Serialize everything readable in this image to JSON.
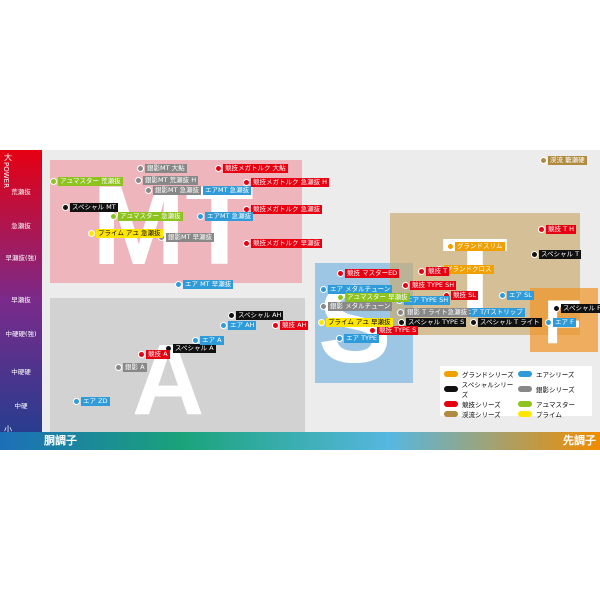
{
  "power_axis": {
    "high": "大",
    "label": "POWER",
    "low": "小",
    "levels": [
      "荒瀬抜",
      "急瀬抜",
      "早瀬抜(強)",
      "早瀬抜",
      "中硬硬(強)",
      "中硬硬",
      "中硬"
    ]
  },
  "tone_axis": {
    "left": "胴調子",
    "right": "先調子"
  },
  "groups": [
    "MT",
    "A",
    "S",
    "T",
    "F"
  ],
  "series": [
    {
      "name": "グランドシリーズ",
      "color": "#f0a000",
      "items": [
        "グランドスリム",
        "グランドクロス"
      ]
    },
    {
      "name": "スペシャルシリーズ",
      "color": "#111111",
      "items": [
        "スペシャル MT",
        "スペシャル T",
        "スペシャル F",
        "スペシャル TYPE S",
        "スペシャル T ライト",
        "スペシャル AH",
        "スペシャル A"
      ]
    },
    {
      "name": "競技シリーズ",
      "color": "#e60012",
      "items": [
        "競技メガトルク 大鮎",
        "競技メガトルク 急瀬抜 H",
        "競技メガトルク 急瀬抜",
        "競技メガトルク 早瀬抜",
        "競技 T H",
        "競技 マスターED",
        "競技 T",
        "競技 TYPE SH",
        "競技 SL",
        "競技 TYPE S",
        "競技 AH",
        "競技 A"
      ]
    },
    {
      "name": "渓流シリーズ",
      "color": "#b08a3e",
      "items": [
        "渓流 籠瀬硬"
      ]
    },
    {
      "name": "エアシリーズ",
      "color": "#2f9bd8",
      "items": [
        "エアMT 急瀬抜",
        "エアMT 急瀬抜",
        "エア MT 早瀬抜",
        "エア メタルチューン",
        "エア TYPE SH",
        "エア SL",
        "エア T/Tストリップ",
        "エア F",
        "エア TYPE",
        "エア AH",
        "エア A",
        "エア ZD"
      ]
    },
    {
      "name": "銀影シリーズ",
      "color": "#888888",
      "items": [
        "銀影MT 大鮎",
        "銀影MT 荒瀬抜 H",
        "銀影MT 急瀬抜",
        "銀影MT 早瀬抜",
        "銀影 メタルチューン",
        "銀影 T ライト急瀬抜",
        "銀影 A"
      ]
    },
    {
      "name": "アユマスター",
      "color": "#8dc21f",
      "items": [
        "アユマスター 荒瀬抜",
        "アユマスター 急瀬抜",
        "アユマスター 早瀬抜"
      ]
    },
    {
      "name": "プライム",
      "color": "#ffe600",
      "items": [
        "プライム アユ 急瀬抜",
        "プライム アユ 早瀬抜"
      ]
    }
  ]
}
